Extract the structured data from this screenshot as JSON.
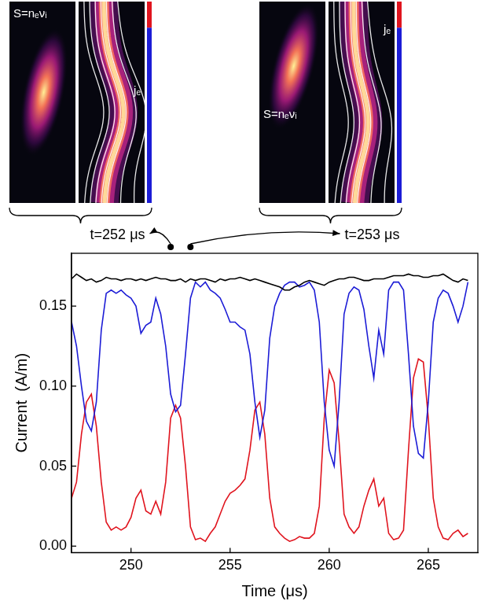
{
  "chart_data": {
    "type": "line",
    "x_label": "Time (μs)",
    "y_label": "Current  (A/m)",
    "xlim": [
      247,
      267.5
    ],
    "ylim": [
      -0.004,
      0.183
    ],
    "xticks": [
      250,
      255,
      260,
      265
    ],
    "yticks": [
      {
        "value": 0,
        "label": "0.00"
      },
      {
        "value": 0.05,
        "label": "0.05"
      },
      {
        "value": 0.1,
        "label": "0.10"
      },
      {
        "value": 0.15,
        "label": "0.15"
      }
    ],
    "grid": false,
    "x": [
      247,
      247.25,
      247.5,
      247.75,
      248,
      248.25,
      248.5,
      248.75,
      249,
      249.25,
      249.5,
      249.75,
      250,
      250.25,
      250.5,
      250.75,
      251,
      251.25,
      251.5,
      251.75,
      252,
      252.25,
      252.5,
      252.75,
      253,
      253.25,
      253.5,
      253.75,
      254,
      254.25,
      254.5,
      254.75,
      255,
      255.25,
      255.5,
      255.75,
      256,
      256.25,
      256.5,
      256.75,
      257,
      257.25,
      257.5,
      257.75,
      258,
      258.25,
      258.5,
      258.75,
      259,
      259.25,
      259.5,
      259.75,
      260,
      260.25,
      260.5,
      260.75,
      261,
      261.25,
      261.5,
      261.75,
      262,
      262.25,
      262.5,
      262.75,
      263,
      263.25,
      263.5,
      263.75,
      264,
      264.25,
      264.5,
      264.75,
      265,
      265.25,
      265.5,
      265.75,
      266,
      266.25,
      266.5,
      266.75,
      267
    ],
    "series": [
      {
        "color": "#000000",
        "values": [
          0.167,
          0.17,
          0.168,
          0.166,
          0.167,
          0.165,
          0.166,
          0.168,
          0.167,
          0.167,
          0.166,
          0.167,
          0.167,
          0.166,
          0.167,
          0.166,
          0.167,
          0.168,
          0.167,
          0.167,
          0.166,
          0.166,
          0.167,
          0.165,
          0.167,
          0.166,
          0.167,
          0.167,
          0.166,
          0.165,
          0.167,
          0.166,
          0.167,
          0.167,
          0.168,
          0.167,
          0.166,
          0.167,
          0.166,
          0.165,
          0.164,
          0.163,
          0.162,
          0.16,
          0.16,
          0.162,
          0.163,
          0.165,
          0.166,
          0.165,
          0.164,
          0.163,
          0.165,
          0.166,
          0.167,
          0.167,
          0.168,
          0.168,
          0.167,
          0.166,
          0.166,
          0.167,
          0.167,
          0.167,
          0.168,
          0.169,
          0.169,
          0.169,
          0.17,
          0.169,
          0.169,
          0.168,
          0.168,
          0.169,
          0.169,
          0.17,
          0.168,
          0.166,
          0.165,
          0.167,
          0.166
        ]
      },
      {
        "color": "#1c1cd6",
        "values": [
          0.14,
          0.125,
          0.1,
          0.078,
          0.072,
          0.09,
          0.135,
          0.158,
          0.16,
          0.158,
          0.16,
          0.157,
          0.155,
          0.15,
          0.133,
          0.138,
          0.14,
          0.155,
          0.145,
          0.125,
          0.095,
          0.084,
          0.088,
          0.12,
          0.155,
          0.165,
          0.162,
          0.165,
          0.16,
          0.158,
          0.155,
          0.148,
          0.14,
          0.14,
          0.137,
          0.135,
          0.12,
          0.09,
          0.068,
          0.085,
          0.13,
          0.15,
          0.158,
          0.163,
          0.165,
          0.165,
          0.162,
          0.163,
          0.165,
          0.16,
          0.14,
          0.09,
          0.06,
          0.05,
          0.09,
          0.145,
          0.158,
          0.162,
          0.16,
          0.148,
          0.125,
          0.105,
          0.135,
          0.12,
          0.16,
          0.165,
          0.165,
          0.16,
          0.12,
          0.075,
          0.058,
          0.055,
          0.09,
          0.14,
          0.155,
          0.16,
          0.158,
          0.15,
          0.14,
          0.15,
          0.165
        ]
      },
      {
        "color": "#e0141e",
        "values": [
          0.03,
          0.04,
          0.07,
          0.09,
          0.095,
          0.075,
          0.04,
          0.015,
          0.01,
          0.012,
          0.01,
          0.012,
          0.018,
          0.03,
          0.035,
          0.022,
          0.02,
          0.028,
          0.02,
          0.04,
          0.08,
          0.088,
          0.08,
          0.05,
          0.012,
          0.004,
          0.005,
          0.003,
          0.008,
          0.012,
          0.02,
          0.028,
          0.033,
          0.035,
          0.038,
          0.042,
          0.06,
          0.085,
          0.09,
          0.07,
          0.03,
          0.012,
          0.008,
          0.005,
          0.003,
          0.004,
          0.006,
          0.005,
          0.005,
          0.008,
          0.025,
          0.08,
          0.11,
          0.102,
          0.065,
          0.02,
          0.012,
          0.008,
          0.012,
          0.025,
          0.035,
          0.042,
          0.025,
          0.03,
          0.008,
          0.004,
          0.005,
          0.01,
          0.06,
          0.105,
          0.117,
          0.115,
          0.08,
          0.03,
          0.012,
          0.005,
          0.004,
          0.008,
          0.01,
          0.006,
          0.008
        ]
      }
    ],
    "panels": [
      {
        "time": 252,
        "label": "t=252 μs",
        "source_label": "S=nₑνᵢ",
        "current_label": "jₑ"
      },
      {
        "time": 253,
        "label": "t=253 μs",
        "source_label": "S=nₑνᵢ",
        "current_label": "jₑ"
      }
    ]
  }
}
